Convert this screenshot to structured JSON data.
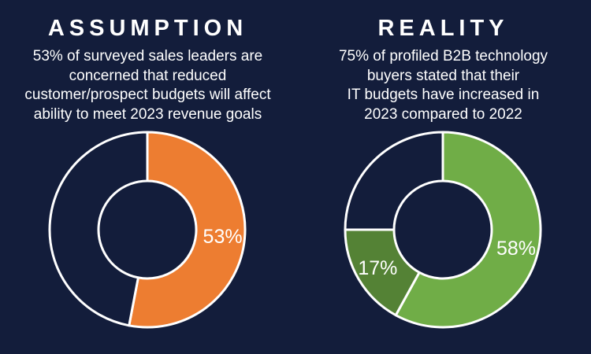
{
  "chart_data": [
    {
      "type": "pie",
      "title": "ASSUMPTION",
      "subtitle_lines": [
        "53% of surveyed sales leaders are",
        "concerned that reduced",
        "customer/prospect budgets will affect",
        "ability to meet 2023 revenue goals"
      ],
      "slices": [
        {
          "value": 53,
          "label": "53%",
          "color": "#ed7d31"
        },
        {
          "value": 47,
          "label": "",
          "color": "#131d3b"
        }
      ]
    },
    {
      "type": "pie",
      "title": "REALITY",
      "subtitle_lines": [
        "75% of profiled B2B technology",
        "buyers stated that their",
        "IT budgets have increased in",
        "2023 compared to 2022"
      ],
      "slices": [
        {
          "value": 58,
          "label": "58%",
          "color": "#70ad47"
        },
        {
          "value": 17,
          "label": "17%",
          "color": "#548235"
        },
        {
          "value": 25,
          "label": "",
          "color": "#131d3b"
        }
      ]
    }
  ]
}
